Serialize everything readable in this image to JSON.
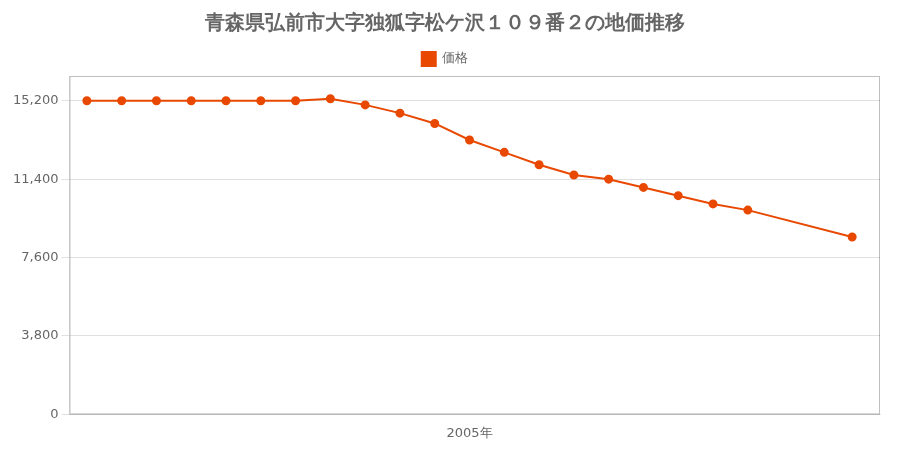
{
  "chart_data": {
    "type": "line",
    "title": "青森県弘前市大字独狐字松ケ沢１０９番２の地価推移",
    "x": [
      1994,
      1995,
      1996,
      1997,
      1998,
      1999,
      2000,
      2001,
      2002,
      2003,
      2004,
      2005,
      2006,
      2007,
      2008,
      2009,
      2010,
      2011,
      2012,
      2013,
      2016
    ],
    "series": [
      {
        "name": "価格",
        "color": "#E84800",
        "marker": "circle",
        "line_style": "solid",
        "values": [
          15200,
          15200,
          15200,
          15200,
          15200,
          15200,
          15200,
          15300,
          15000,
          14600,
          14100,
          13300,
          12700,
          12100,
          11600,
          11400,
          11000,
          10600,
          10200,
          9900,
          8600
        ]
      }
    ],
    "xlim": [
      1993.5,
      2016.8
    ],
    "xticks": [
      {
        "value": 2005,
        "label": "2005年"
      }
    ],
    "ylim": [
      0,
      16400
    ],
    "yticks": [
      0,
      {
        "value": 3800,
        "label": "3,800"
      },
      {
        "value": 7600,
        "label": "7,600"
      },
      {
        "value": 11400,
        "label": "11,400"
      },
      {
        "value": 15200,
        "label": "15,200"
      }
    ],
    "grid": "y",
    "legend": "top"
  }
}
